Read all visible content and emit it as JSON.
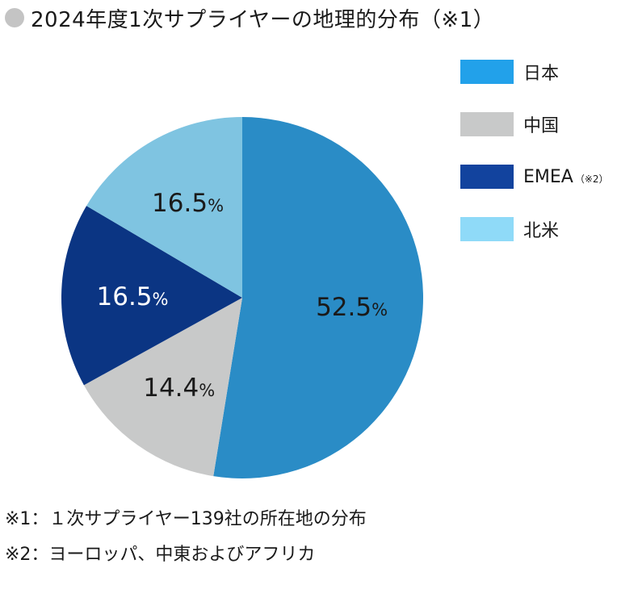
{
  "title": "2024年度1次サプライヤーの地理的分布（※1）",
  "chart_data": {
    "type": "pie",
    "categories": [
      "日本",
      "中国",
      "EMEA",
      "北米"
    ],
    "values": [
      52.5,
      14.4,
      16.5,
      16.5
    ],
    "value_suffix": "%",
    "colors": [
      "#2a8cc6",
      "#c8c9c9",
      "#0b3583",
      "#7fc4e1"
    ],
    "label_colors": [
      "#1a1a1a",
      "#1a1a1a",
      "#ffffff",
      "#1a1a1a"
    ],
    "legend": [
      {
        "label": "日本",
        "note": "",
        "color": "#22a1ea"
      },
      {
        "label": "中国",
        "note": "",
        "color": "#c8c9c9"
      },
      {
        "label": "EMEA",
        "note": "（※2）",
        "color": "#12439e"
      },
      {
        "label": "北米",
        "note": "",
        "color": "#8fdaf8"
      }
    ],
    "legend_position": "top-right",
    "start": "12 o'clock, clockwise"
  },
  "footnotes": [
    "※1：１次サプライヤー139社の所在地の分布",
    "※2：ヨーロッパ、中東およびアフリカ"
  ]
}
